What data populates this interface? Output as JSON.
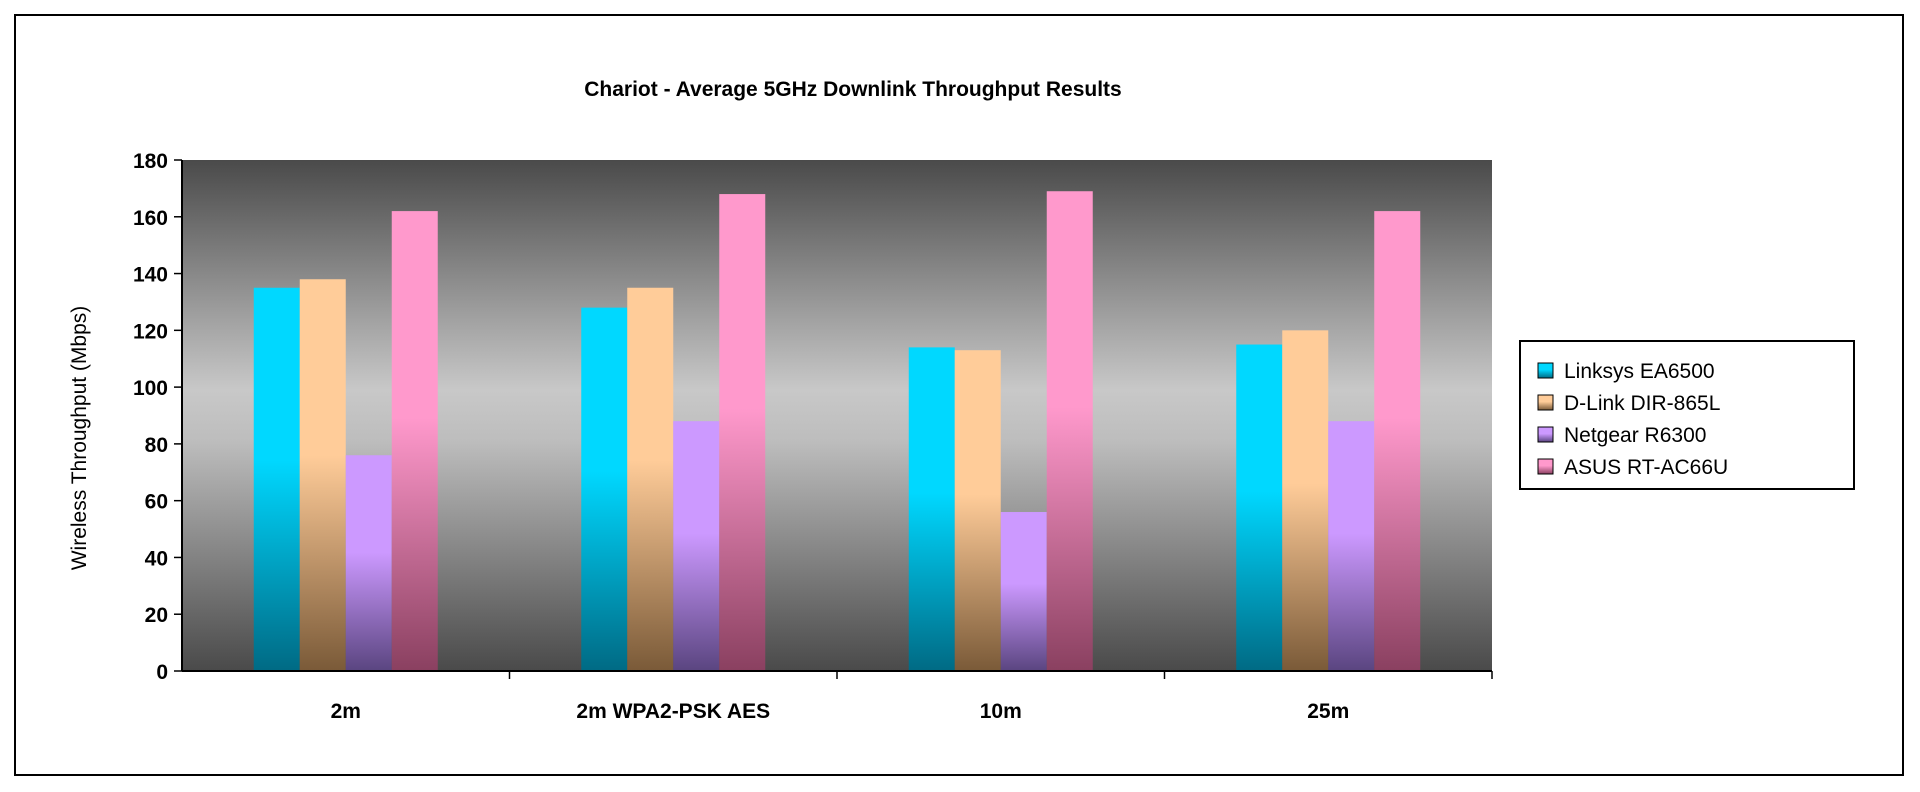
{
  "chart_data": {
    "type": "bar",
    "title": "Chariot - Average 5GHz Downlink Throughput Results",
    "xlabel": "",
    "ylabel": "Wireless Throughput (Mbps)",
    "ylim": [
      0,
      180
    ],
    "yticks": [
      0,
      20,
      40,
      60,
      80,
      100,
      120,
      140,
      160,
      180
    ],
    "legend_position": "right",
    "categories": [
      "2m",
      "2m WPA2-PSK AES",
      "10m",
      "25m"
    ],
    "series": [
      {
        "name": "Linksys EA6500",
        "values": [
          135,
          128,
          114,
          115
        ],
        "color_top": "#00d8ff",
        "color_bottom": "#006a84"
      },
      {
        "name": "D-Link DIR-865L",
        "values": [
          138,
          135,
          113,
          120
        ],
        "color_top": "#ffcc99",
        "color_bottom": "#7a5a38"
      },
      {
        "name": "Netgear R6300",
        "values": [
          76,
          88,
          56,
          88
        ],
        "color_top": "#cc99ff",
        "color_bottom": "#5a4580"
      },
      {
        "name": "ASUS RT-AC66U",
        "values": [
          162,
          168,
          169,
          162
        ],
        "color_top": "#ff99cc",
        "color_bottom": "#8a4060"
      }
    ]
  }
}
